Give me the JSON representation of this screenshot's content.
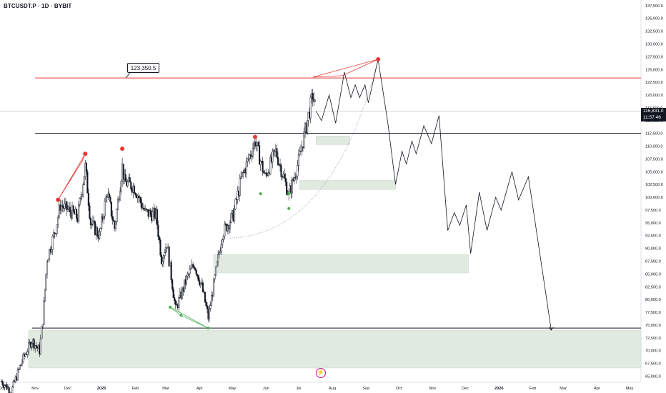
{
  "header": {
    "title": "BTCUSDT.P · 1D · BYBIT"
  },
  "price_badge": {
    "price": "116,831.0",
    "countdown": "11:57:46"
  },
  "callout": {
    "label": "123,350.5"
  },
  "watermark": {
    "icon": "lightning-bolt-icon",
    "color": "#c2188c"
  },
  "chart_data": {
    "type": "line",
    "title": "BTCUSDT.P · 1D · BYBIT",
    "x_axis": {
      "type": "date",
      "range": [
        "2024-10-01",
        "2026-05-20"
      ],
      "ticks": [
        {
          "label": "Oct",
          "date": "2024-10-01"
        },
        {
          "label": "Nov",
          "date": "2024-11-01"
        },
        {
          "label": "Dec",
          "date": "2024-12-01"
        },
        {
          "label": "2025",
          "date": "2025-01-01"
        },
        {
          "label": "Feb",
          "date": "2025-02-01"
        },
        {
          "label": "Mar",
          "date": "2025-03-01"
        },
        {
          "label": "Apr",
          "date": "2025-04-01"
        },
        {
          "label": "May",
          "date": "2025-05-01"
        },
        {
          "label": "Jun",
          "date": "2025-06-01"
        },
        {
          "label": "Jul",
          "date": "2025-07-01"
        },
        {
          "label": "Aug",
          "date": "2025-08-01"
        },
        {
          "label": "Sep",
          "date": "2025-09-01"
        },
        {
          "label": "Oct",
          "date": "2025-10-01"
        },
        {
          "label": "Nov",
          "date": "2025-11-01"
        },
        {
          "label": "Dec",
          "date": "2025-12-01"
        },
        {
          "label": "2026",
          "date": "2026-01-01"
        },
        {
          "label": "Feb",
          "date": "2026-02-01"
        },
        {
          "label": "Mar",
          "date": "2026-03-01"
        },
        {
          "label": "Apr",
          "date": "2026-04-01"
        },
        {
          "label": "May",
          "date": "2026-05-01"
        }
      ]
    },
    "y_axis": {
      "range": [
        63800,
        138600
      ],
      "position": "right",
      "ticks": [
        "137,500.0",
        "135,000.0",
        "132,500.0",
        "130,000.0",
        "127,500.0",
        "125,000.0",
        "122,500.0",
        "120,000.0",
        "117,500.0",
        "115,000.0",
        "112,500.0",
        "110,000.0",
        "107,500.0",
        "105,000.0",
        "102,500.0",
        "100,000.0",
        "97,500.0",
        "95,000.0",
        "92,500.0",
        "90,000.0",
        "87,500.0",
        "85,000.0",
        "82,500.0",
        "80,000.0",
        "77,500.0",
        "75,000.0",
        "72,500.0",
        "70,000.0",
        "67,500.0",
        "65,000.0"
      ]
    },
    "grid": false,
    "current_price": 116831.0,
    "price_history_close": [
      [
        "2024-10-01",
        64000
      ],
      [
        "2024-10-10",
        62000
      ],
      [
        "2024-10-20",
        68000
      ],
      [
        "2024-10-29",
        72000
      ],
      [
        "2024-11-05",
        70000
      ],
      [
        "2024-11-08",
        76000
      ],
      [
        "2024-11-12",
        88000
      ],
      [
        "2024-11-20",
        94000
      ],
      [
        "2024-11-24",
        98500
      ],
      [
        "2024-12-05",
        97000
      ],
      [
        "2024-12-10",
        96000
      ],
      [
        "2024-12-17",
        106000
      ],
      [
        "2024-12-22",
        95000
      ],
      [
        "2024-12-30",
        92500
      ],
      [
        "2025-01-06",
        101000
      ],
      [
        "2025-01-13",
        94000
      ],
      [
        "2025-01-20",
        106000
      ],
      [
        "2025-01-22",
        103000
      ],
      [
        "2025-01-31",
        102000
      ],
      [
        "2025-02-10",
        97000
      ],
      [
        "2025-02-20",
        96500
      ],
      [
        "2025-02-25",
        88000
      ],
      [
        "2025-03-02",
        91000
      ],
      [
        "2025-03-10",
        78000
      ],
      [
        "2025-03-20",
        84000
      ],
      [
        "2025-03-27",
        87000
      ],
      [
        "2025-04-03",
        82500
      ],
      [
        "2025-04-09",
        76500
      ],
      [
        "2025-04-22",
        93000
      ],
      [
        "2025-05-02",
        96500
      ],
      [
        "2025-05-09",
        103500
      ],
      [
        "2025-05-22",
        111000
      ],
      [
        "2025-05-31",
        104000
      ],
      [
        "2025-06-10",
        109000
      ],
      [
        "2025-06-22",
        100500
      ],
      [
        "2025-07-01",
        107000
      ],
      [
        "2025-07-10",
        116000
      ],
      [
        "2025-07-14",
        120000
      ],
      [
        "2025-07-17",
        116831
      ]
    ],
    "projected_path": [
      [
        "2025-07-17",
        116831
      ],
      [
        "2025-07-22",
        115000
      ],
      [
        "2025-07-29",
        120000
      ],
      [
        "2025-08-04",
        114500
      ],
      [
        "2025-08-12",
        124500
      ],
      [
        "2025-08-18",
        119500
      ],
      [
        "2025-08-22",
        122000
      ],
      [
        "2025-08-26",
        119500
      ],
      [
        "2025-08-31",
        122000
      ],
      [
        "2025-09-03",
        118500
      ],
      [
        "2025-09-12",
        127000
      ],
      [
        "2025-09-21",
        114500
      ],
      [
        "2025-09-28",
        102500
      ],
      [
        "2025-10-04",
        109000
      ],
      [
        "2025-10-08",
        106500
      ],
      [
        "2025-10-13",
        111000
      ],
      [
        "2025-10-17",
        108500
      ],
      [
        "2025-10-24",
        114000
      ],
      [
        "2025-10-31",
        110500
      ],
      [
        "2025-11-07",
        116000
      ],
      [
        "2025-11-15",
        93500
      ],
      [
        "2025-11-21",
        97000
      ],
      [
        "2025-11-26",
        94500
      ],
      [
        "2025-12-02",
        98500
      ],
      [
        "2025-12-06",
        89000
      ],
      [
        "2025-12-14",
        101000
      ],
      [
        "2025-12-21",
        93500
      ],
      [
        "2025-12-29",
        100000
      ],
      [
        "2026-01-03",
        97500
      ],
      [
        "2026-01-13",
        105000
      ],
      [
        "2026-01-19",
        99500
      ],
      [
        "2026-01-28",
        104000
      ],
      [
        "2026-02-18",
        74000
      ]
    ],
    "horizontal_levels": [
      {
        "price": 123350.5,
        "color": "#e53935",
        "label": "123,350.5"
      },
      {
        "price": 112500,
        "color": "#131722"
      },
      {
        "price": 74400,
        "color": "#131722"
      },
      {
        "price": 116831.0,
        "color": "#b2b5be"
      }
    ],
    "demand_zones": [
      {
        "from": "2025-07-17",
        "to": "2025-08-17",
        "low": 110300,
        "high": 112000
      },
      {
        "from": "2025-07-02",
        "to": "2025-09-28",
        "low": 101500,
        "high": 103300
      },
      {
        "from": "2025-04-14",
        "to": "2025-12-04",
        "low": 85200,
        "high": 88800
      },
      {
        "from": "2024-10-26",
        "to": "2026-05-20",
        "low": 66600,
        "high": 74000
      }
    ],
    "curve": {
      "from": [
        "2025-04-29",
        92000
      ],
      "to": [
        "2025-09-12",
        127000
      ],
      "style": "dotted"
    },
    "red_markers": [
      {
        "date": "2024-11-22",
        "price": 99500
      },
      {
        "date": "2024-12-17",
        "price": 108500
      },
      {
        "date": "2025-01-20",
        "price": 109500
      },
      {
        "date": "2025-05-22",
        "price": 111800
      },
      {
        "date": "2025-09-12",
        "price": 127000
      }
    ],
    "green_markers": [
      {
        "date": "2025-03-05",
        "price": 78500
      },
      {
        "date": "2025-03-15",
        "price": 76900
      },
      {
        "date": "2025-04-09",
        "price": 74400
      },
      {
        "date": "2025-05-27",
        "price": 100700
      },
      {
        "date": "2025-06-22",
        "price": 100700
      },
      {
        "date": "2025-06-22",
        "price": 97800
      }
    ],
    "red_wedges": [
      [
        [
          "2024-11-22",
          99500
        ],
        [
          "2024-12-17",
          108500
        ],
        [
          "2024-12-14",
          107000
        ],
        [
          "2024-11-22",
          99500
        ]
      ],
      [
        [
          "2025-07-14",
          123500
        ],
        [
          "2025-09-12",
          127000
        ],
        [
          "2025-08-10",
          123800
        ],
        [
          "2025-07-14",
          123500
        ]
      ]
    ],
    "green_wedges": [
      [
        [
          "2025-03-05",
          78500
        ],
        [
          "2025-04-09",
          74400
        ],
        [
          "2025-03-15",
          76900
        ],
        [
          "2025-03-05",
          78500
        ]
      ]
    ]
  }
}
